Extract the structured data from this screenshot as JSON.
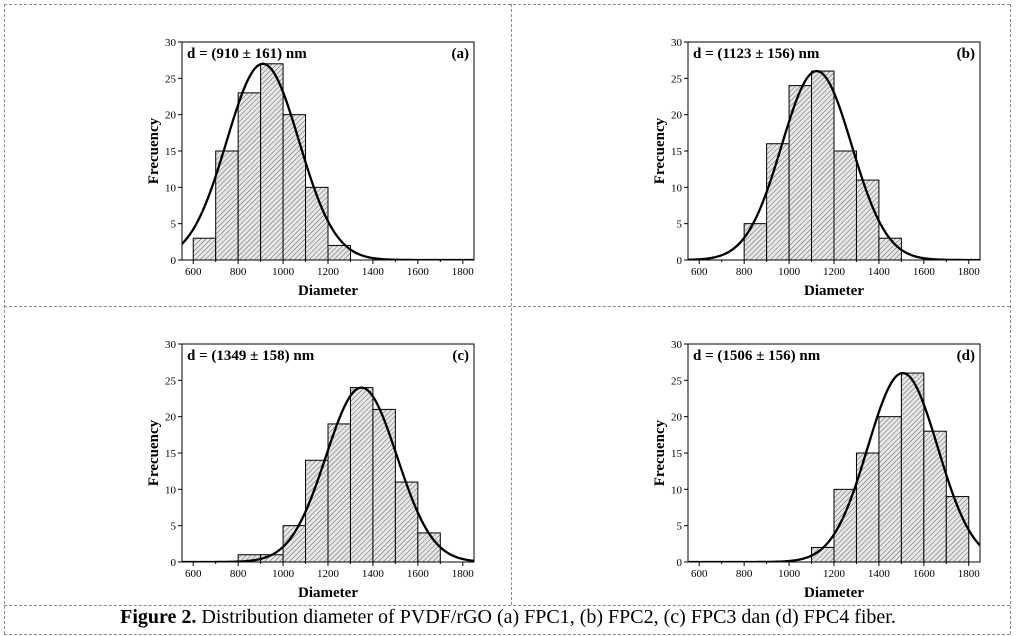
{
  "caption": {
    "label": "Figure 2.",
    "text": " Distribution diameter of PVDF/rGO (a) FPC1, (b) FPC2, (c) FPC3 dan (d) FPC4 fiber."
  },
  "colors": {
    "border": "#8a8a8a",
    "bar_fill": "#e6e6e6",
    "hatch": "#555555",
    "curve": "#000000"
  },
  "chart_data": [
    {
      "type": "bar",
      "panel_label": "(a)",
      "annotation": "d = (910 ± 161) nm",
      "xlabel": "Diameter",
      "ylabel": "Frecuency",
      "xlim": [
        550,
        1850
      ],
      "ylim": [
        0,
        30
      ],
      "xticks": [
        600,
        800,
        1000,
        1200,
        1400,
        1600,
        1800
      ],
      "yticks": [
        0,
        5,
        10,
        15,
        20,
        25,
        30
      ],
      "bin_width": 100,
      "bins": [
        {
          "x": 650,
          "y": 3
        },
        {
          "x": 750,
          "y": 15
        },
        {
          "x": 850,
          "y": 23
        },
        {
          "x": 950,
          "y": 27
        },
        {
          "x": 1050,
          "y": 20
        },
        {
          "x": 1150,
          "y": 10
        },
        {
          "x": 1250,
          "y": 2
        }
      ],
      "fit": {
        "mean": 910,
        "sd": 161,
        "peak": 27
      }
    },
    {
      "type": "bar",
      "panel_label": "(b)",
      "annotation": "d = (1123 ± 156) nm",
      "xlabel": "Diameter",
      "ylabel": "Frecuency",
      "xlim": [
        550,
        1850
      ],
      "ylim": [
        0,
        30
      ],
      "xticks": [
        600,
        800,
        1000,
        1200,
        1400,
        1600,
        1800
      ],
      "yticks": [
        0,
        5,
        10,
        15,
        20,
        25,
        30
      ],
      "bin_width": 100,
      "bins": [
        {
          "x": 850,
          "y": 5
        },
        {
          "x": 950,
          "y": 16
        },
        {
          "x": 1050,
          "y": 24
        },
        {
          "x": 1150,
          "y": 26
        },
        {
          "x": 1250,
          "y": 15
        },
        {
          "x": 1350,
          "y": 11
        },
        {
          "x": 1450,
          "y": 3
        }
      ],
      "fit": {
        "mean": 1123,
        "sd": 156,
        "peak": 26
      }
    },
    {
      "type": "bar",
      "panel_label": "(c)",
      "annotation": "d = (1349 ± 158) nm",
      "xlabel": "Diameter",
      "ylabel": "Frecuency",
      "xlim": [
        550,
        1850
      ],
      "ylim": [
        0,
        30
      ],
      "xticks": [
        600,
        800,
        1000,
        1200,
        1400,
        1600,
        1800
      ],
      "yticks": [
        0,
        5,
        10,
        15,
        20,
        25,
        30
      ],
      "bin_width": 100,
      "bins": [
        {
          "x": 850,
          "y": 1
        },
        {
          "x": 950,
          "y": 1
        },
        {
          "x": 1050,
          "y": 5
        },
        {
          "x": 1150,
          "y": 14
        },
        {
          "x": 1250,
          "y": 19
        },
        {
          "x": 1350,
          "y": 24
        },
        {
          "x": 1450,
          "y": 21
        },
        {
          "x": 1550,
          "y": 11
        },
        {
          "x": 1650,
          "y": 4
        }
      ],
      "fit": {
        "mean": 1349,
        "sd": 158,
        "peak": 24
      }
    },
    {
      "type": "bar",
      "panel_label": "(d)",
      "annotation": "d = (1506 ± 156) nm",
      "xlabel": "Diameter",
      "ylabel": "Frecuency",
      "xlim": [
        550,
        1850
      ],
      "ylim": [
        0,
        30
      ],
      "xticks": [
        600,
        800,
        1000,
        1200,
        1400,
        1600,
        1800
      ],
      "yticks": [
        0,
        5,
        10,
        15,
        20,
        25,
        30
      ],
      "bin_width": 100,
      "bins": [
        {
          "x": 1150,
          "y": 2
        },
        {
          "x": 1250,
          "y": 10
        },
        {
          "x": 1350,
          "y": 15
        },
        {
          "x": 1450,
          "y": 20
        },
        {
          "x": 1550,
          "y": 26
        },
        {
          "x": 1650,
          "y": 18
        },
        {
          "x": 1750,
          "y": 9
        }
      ],
      "fit": {
        "mean": 1506,
        "sd": 156,
        "peak": 26
      }
    }
  ]
}
